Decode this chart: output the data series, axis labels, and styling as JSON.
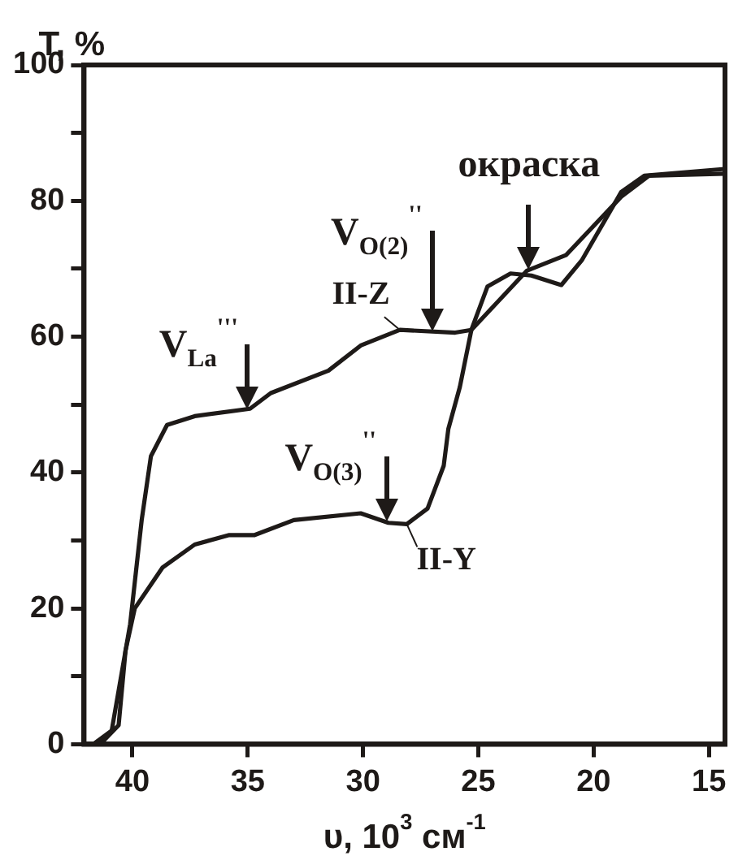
{
  "chart_data": {
    "type": "line",
    "ylabel": "T, %",
    "xlabel": "υ, 10$^{3}$ см$^{-1}$",
    "xlim": [
      42.1,
      14.3
    ],
    "xticks": [
      40,
      35,
      30,
      25,
      20,
      15
    ],
    "ylim": [
      0,
      100
    ],
    "yticks": [
      0,
      {
        "value": 10,
        "label": null
      },
      20,
      {
        "value": 30,
        "label": null
      },
      40,
      {
        "value": 50,
        "label": null
      },
      60,
      {
        "value": 70,
        "label": null
      },
      80,
      {
        "value": 90,
        "label": null
      },
      100
    ],
    "marker": "none",
    "line_style": "solid",
    "series": [
      {
        "name": "II-Z",
        "color": "#1e1a18",
        "x": [
          41.7,
          40.9,
          40.1,
          39.6,
          39.2,
          38.5,
          37.3,
          34.9,
          34,
          31.5,
          30.1,
          28.4,
          26,
          25.3,
          22.9,
          21.2,
          18.8,
          17.6,
          14.3
        ],
        "values": [
          0,
          2,
          17.7,
          33,
          42.4,
          47,
          48.3,
          49.4,
          51.7,
          55,
          58.7,
          61,
          60.6,
          61,
          69.7,
          72,
          80.6,
          83.7,
          84
        ]
      },
      {
        "name": "II-Y",
        "color": "#1e1a18",
        "x": [
          41.4,
          40.6,
          40.3,
          39.9,
          38.7,
          37.3,
          35.8,
          34.7,
          33,
          30.1,
          28.9,
          28.1,
          27.2,
          26.5,
          26.3,
          25.8,
          25.3,
          24.6,
          23.6,
          22.7,
          21.4,
          20.5,
          18.8,
          17.8,
          14.3
        ],
        "values": [
          0,
          2.8,
          13.8,
          20,
          26,
          29.4,
          30.8,
          30.8,
          33,
          34,
          32.6,
          32.4,
          34.7,
          41,
          46.4,
          52.6,
          61,
          67.4,
          69.3,
          69,
          67.6,
          71.3,
          81.3,
          83.7,
          84.7
        ]
      }
    ],
    "annotations": [
      {
        "text": "V$_{La}$$^{'''}$",
        "x": 35,
        "y": 49.4
      },
      {
        "text": "V$_{O(2)}$$^{''}$",
        "x": 27,
        "y": 60.7
      },
      {
        "text": "V$_{O(3)}$$^{''}$",
        "x": 29,
        "y": 32.7
      },
      {
        "text": "окраска",
        "x": 22.8,
        "y": 69.8
      }
    ]
  }
}
